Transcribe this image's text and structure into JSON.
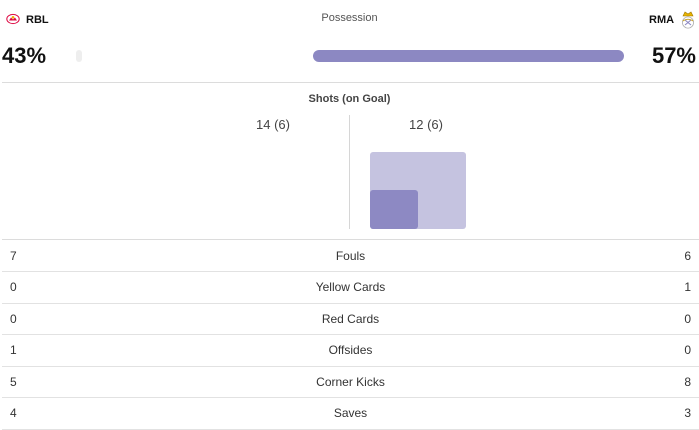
{
  "teams": {
    "home": {
      "abbr": "RBL",
      "logo_icon": "rbl-crest-icon",
      "accent": "#dd0741"
    },
    "away": {
      "abbr": "RMA",
      "logo_icon": "real-madrid-crest-icon",
      "accent": "#8d89c3"
    }
  },
  "possession": {
    "title": "Possession",
    "home_value": 43,
    "away_value": 57,
    "home_pct_label": "43%",
    "away_pct_label": "57%"
  },
  "shots": {
    "title": "Shots (on Goal)",
    "home_label": "14 (6)",
    "away_label": "12 (6)",
    "home_total": 14,
    "home_on_goal": 6,
    "away_total": 12,
    "away_on_goal": 6
  },
  "stats": [
    {
      "label": "Fouls",
      "home": "7",
      "away": "6"
    },
    {
      "label": "Yellow Cards",
      "home": "0",
      "away": "1"
    },
    {
      "label": "Red Cards",
      "home": "0",
      "away": "0"
    },
    {
      "label": "Offsides",
      "home": "1",
      "away": "0"
    },
    {
      "label": "Corner Kicks",
      "home": "5",
      "away": "8"
    },
    {
      "label": "Saves",
      "home": "4",
      "away": "3"
    }
  ],
  "colors": {
    "possession_away": "#8c88c2",
    "possession_home": "#eeeeee",
    "shots_total": "#c5c3e0",
    "shots_on_goal": "#8d89c3"
  }
}
